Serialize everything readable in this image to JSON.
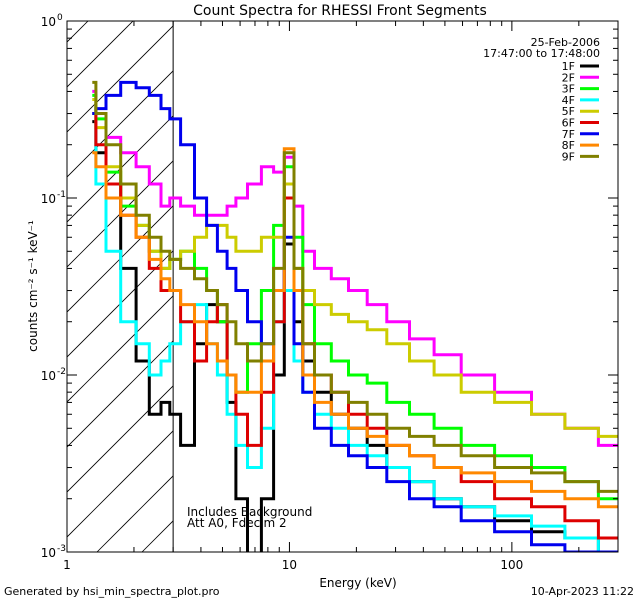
{
  "chart_data": {
    "type": "line",
    "title": "Count Spectra for RHESSI Front Segments",
    "xlabel": "Energy (keV)",
    "ylabel": "counts cm⁻² s⁻¹ keV⁻¹",
    "xscale": "log",
    "yscale": "log",
    "xlim": [
      1,
      300
    ],
    "ylim": [
      0.001,
      1
    ],
    "x_ticks": [
      {
        "value": 1,
        "label": "1"
      },
      {
        "value": 10,
        "label": "10"
      },
      {
        "value": 100,
        "label": "100"
      }
    ],
    "y_ticks": [
      {
        "value": 0.001,
        "base": "10",
        "exp": "-3"
      },
      {
        "value": 0.01,
        "base": "10",
        "exp": "-2"
      },
      {
        "value": 0.1,
        "base": "10",
        "exp": "-1"
      },
      {
        "value": 1,
        "base": "10",
        "exp": "0"
      }
    ],
    "date": "25-Feb-2006",
    "time_range": "17:47:00 to 17:48:00",
    "annotations": [
      "Includes Background",
      "Att A0, Fdecim 2"
    ],
    "hatched_region": [
      1,
      3
    ],
    "series": [
      {
        "name": "1F",
        "color": "#000000",
        "x": [
          1.3,
          1.4,
          1.6,
          1.9,
          2.2,
          2.5,
          2.8,
          3.0,
          3.5,
          4.0,
          4.5,
          5.0,
          5.5,
          6.0,
          7.0,
          8.0,
          9.0,
          10.0,
          11.0,
          12.0,
          14.0,
          17.0,
          20.0,
          25.0,
          30.0,
          40.0,
          50.0,
          70.0,
          100.0,
          150.0,
          200.0,
          300.0
        ],
        "y": [
          0.27,
          0.18,
          0.12,
          0.04,
          0.012,
          0.006,
          0.007,
          0.006,
          0.004,
          0.015,
          0.025,
          0.02,
          0.007,
          0.002,
          0.0006,
          0.002,
          0.01,
          0.055,
          0.02,
          0.012,
          0.008,
          0.006,
          0.005,
          0.004,
          0.003,
          0.0025,
          0.002,
          0.0018,
          0.0015,
          0.0013,
          0.0012,
          0.001
        ]
      },
      {
        "name": "2F",
        "color": "#ff00ff",
        "x": [
          1.3,
          1.4,
          1.6,
          1.9,
          2.2,
          2.5,
          2.8,
          3.0,
          3.5,
          4.0,
          4.5,
          5.0,
          5.5,
          6.0,
          7.0,
          8.0,
          9.0,
          10.0,
          11.0,
          12.0,
          14.0,
          17.0,
          20.0,
          25.0,
          30.0,
          40.0,
          50.0,
          70.0,
          100.0,
          150.0,
          200.0,
          300.0
        ],
        "y": [
          0.4,
          0.3,
          0.22,
          0.18,
          0.15,
          0.12,
          0.09,
          0.1,
          0.09,
          0.08,
          0.08,
          0.08,
          0.09,
          0.1,
          0.12,
          0.15,
          0.14,
          0.17,
          0.09,
          0.05,
          0.04,
          0.035,
          0.03,
          0.025,
          0.02,
          0.016,
          0.013,
          0.01,
          0.008,
          0.006,
          0.005,
          0.004
        ]
      },
      {
        "name": "3F",
        "color": "#00ff00",
        "x": [
          1.3,
          1.4,
          1.6,
          1.9,
          2.2,
          2.5,
          2.8,
          3.0,
          3.5,
          4.0,
          4.5,
          5.0,
          5.5,
          6.0,
          7.0,
          8.0,
          9.0,
          10.0,
          11.0,
          12.0,
          14.0,
          17.0,
          20.0,
          25.0,
          30.0,
          40.0,
          50.0,
          70.0,
          100.0,
          150.0,
          200.0,
          300.0
        ],
        "y": [
          0.38,
          0.28,
          0.14,
          0.09,
          0.07,
          0.05,
          0.04,
          0.045,
          0.05,
          0.04,
          0.03,
          0.02,
          0.01,
          0.008,
          0.015,
          0.03,
          0.07,
          0.15,
          0.06,
          0.025,
          0.015,
          0.012,
          0.01,
          0.009,
          0.007,
          0.006,
          0.005,
          0.004,
          0.0035,
          0.003,
          0.0025,
          0.002
        ]
      },
      {
        "name": "4F",
        "color": "#00ffff",
        "x": [
          1.3,
          1.4,
          1.6,
          1.9,
          2.2,
          2.5,
          2.8,
          3.0,
          3.5,
          4.0,
          4.5,
          5.0,
          5.5,
          6.0,
          7.0,
          8.0,
          9.0,
          10.0,
          11.0,
          12.0,
          14.0,
          17.0,
          20.0,
          25.0,
          30.0,
          40.0,
          50.0,
          70.0,
          100.0,
          150.0,
          200.0,
          300.0
        ],
        "y": [
          0.3,
          0.12,
          0.05,
          0.02,
          0.015,
          0.01,
          0.012,
          0.015,
          0.02,
          0.025,
          0.015,
          0.01,
          0.006,
          0.004,
          0.003,
          0.005,
          0.02,
          0.03,
          0.012,
          0.008,
          0.006,
          0.005,
          0.004,
          0.0035,
          0.003,
          0.0025,
          0.002,
          0.0018,
          0.0016,
          0.0014,
          0.0012,
          0.001
        ]
      },
      {
        "name": "5F",
        "color": "#cccc00",
        "x": [
          1.3,
          1.4,
          1.6,
          1.9,
          2.2,
          2.5,
          2.8,
          3.0,
          3.5,
          4.0,
          4.5,
          5.0,
          5.5,
          6.0,
          7.0,
          8.0,
          9.0,
          10.0,
          11.0,
          12.0,
          14.0,
          17.0,
          20.0,
          25.0,
          30.0,
          40.0,
          50.0,
          70.0,
          100.0,
          150.0,
          200.0,
          300.0
        ],
        "y": [
          0.36,
          0.25,
          0.15,
          0.1,
          0.07,
          0.05,
          0.04,
          0.045,
          0.05,
          0.06,
          0.07,
          0.07,
          0.06,
          0.05,
          0.05,
          0.06,
          0.06,
          0.12,
          0.04,
          0.03,
          0.025,
          0.022,
          0.02,
          0.018,
          0.015,
          0.012,
          0.01,
          0.008,
          0.007,
          0.006,
          0.005,
          0.0045
        ]
      },
      {
        "name": "6F",
        "color": "#dd0000",
        "x": [
          1.3,
          1.4,
          1.6,
          1.9,
          2.2,
          2.5,
          2.8,
          3.0,
          3.5,
          4.0,
          4.5,
          5.0,
          5.5,
          6.0,
          7.0,
          8.0,
          9.0,
          10.0,
          11.0,
          12.0,
          14.0,
          17.0,
          20.0,
          25.0,
          30.0,
          40.0,
          50.0,
          70.0,
          100.0,
          150.0,
          200.0,
          300.0
        ],
        "y": [
          0.3,
          0.2,
          0.12,
          0.08,
          0.06,
          0.04,
          0.03,
          0.03,
          0.02,
          0.012,
          0.02,
          0.025,
          0.01,
          0.006,
          0.004,
          0.008,
          0.02,
          0.1,
          0.03,
          0.015,
          0.01,
          0.008,
          0.006,
          0.005,
          0.004,
          0.0035,
          0.003,
          0.0025,
          0.002,
          0.0018,
          0.0015,
          0.0012
        ]
      },
      {
        "name": "7F",
        "color": "#0000ee",
        "x": [
          1.3,
          1.4,
          1.6,
          1.9,
          2.2,
          2.5,
          2.8,
          3.0,
          3.5,
          4.0,
          4.5,
          5.0,
          5.5,
          6.0,
          7.0,
          8.0,
          9.0,
          10.0,
          11.0,
          12.0,
          14.0,
          17.0,
          20.0,
          25.0,
          30.0,
          40.0,
          50.0,
          70.0,
          100.0,
          150.0,
          200.0,
          300.0
        ],
        "y": [
          0.3,
          0.32,
          0.38,
          0.45,
          0.42,
          0.38,
          0.32,
          0.28,
          0.2,
          0.1,
          0.07,
          0.05,
          0.04,
          0.03,
          0.02,
          0.015,
          0.03,
          0.06,
          0.015,
          0.008,
          0.005,
          0.004,
          0.0035,
          0.003,
          0.0025,
          0.002,
          0.0018,
          0.0015,
          0.0013,
          0.0011,
          0.001,
          0.001
        ]
      },
      {
        "name": "8F",
        "color": "#ff8800",
        "x": [
          1.3,
          1.4,
          1.6,
          1.9,
          2.2,
          2.5,
          2.8,
          3.0,
          3.5,
          4.0,
          4.5,
          5.0,
          5.5,
          6.0,
          7.0,
          8.0,
          9.0,
          10.0,
          11.0,
          12.0,
          14.0,
          17.0,
          20.0,
          25.0,
          30.0,
          40.0,
          50.0,
          70.0,
          100.0,
          150.0,
          200.0,
          300.0
        ],
        "y": [
          0.18,
          0.15,
          0.1,
          0.08,
          0.06,
          0.045,
          0.035,
          0.03,
          0.025,
          0.02,
          0.015,
          0.012,
          0.01,
          0.008,
          0.008,
          0.012,
          0.03,
          0.19,
          0.03,
          0.01,
          0.007,
          0.006,
          0.005,
          0.0045,
          0.004,
          0.0035,
          0.003,
          0.0028,
          0.0025,
          0.0022,
          0.002,
          0.0018
        ]
      },
      {
        "name": "9F",
        "color": "#808000",
        "x": [
          1.3,
          1.4,
          1.6,
          1.9,
          2.2,
          2.5,
          2.8,
          3.0,
          3.5,
          4.0,
          4.5,
          5.0,
          5.5,
          6.0,
          7.0,
          8.0,
          9.0,
          10.0,
          11.0,
          12.0,
          14.0,
          17.0,
          20.0,
          25.0,
          30.0,
          40.0,
          50.0,
          70.0,
          100.0,
          150.0,
          200.0,
          300.0
        ],
        "y": [
          0.45,
          0.3,
          0.2,
          0.12,
          0.08,
          0.06,
          0.05,
          0.045,
          0.04,
          0.035,
          0.03,
          0.025,
          0.02,
          0.015,
          0.012,
          0.015,
          0.04,
          0.18,
          0.04,
          0.015,
          0.01,
          0.008,
          0.007,
          0.006,
          0.005,
          0.0045,
          0.004,
          0.0035,
          0.003,
          0.0028,
          0.0025,
          0.0022
        ]
      }
    ]
  },
  "footer": {
    "generated_by": "Generated by hsi_min_spectra_plot.pro",
    "timestamp": "10-Apr-2023 11:22"
  }
}
